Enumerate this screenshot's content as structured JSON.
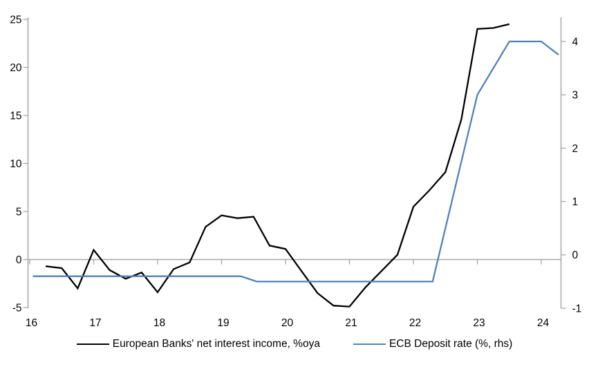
{
  "chart_data": {
    "type": "line",
    "title": "",
    "legend_position": "bottom",
    "grid": false,
    "x_axis": {
      "tick_labels": [
        "16",
        "17",
        "18",
        "19",
        "20",
        "21",
        "22",
        "23",
        "24"
      ],
      "tick_values": [
        16,
        17,
        18,
        19,
        20,
        21,
        22,
        23,
        24
      ],
      "range": [
        16,
        24.31
      ],
      "ticks_on_zero_line": true
    },
    "left_axis": {
      "tick_labels": [
        "25",
        "20",
        "15",
        "10",
        "5",
        "0",
        "-5"
      ],
      "tick_values": [
        25,
        20,
        15,
        10,
        5,
        0,
        -5
      ],
      "range": [
        -5,
        25
      ],
      "zero_line": true
    },
    "right_axis": {
      "tick_labels": [
        "4",
        "3",
        "2",
        "1",
        "0",
        "-1"
      ],
      "tick_values": [
        4,
        3,
        2,
        1,
        0,
        -1
      ],
      "range": [
        -1,
        4.33
      ]
    },
    "series": [
      {
        "name": "European Banks' net interest income, %oya",
        "axis": "left",
        "color": "#000000",
        "x": [
          16.25,
          16.5,
          16.75,
          17.0,
          17.25,
          17.5,
          17.75,
          18.0,
          18.25,
          18.5,
          18.75,
          19.0,
          19.25,
          19.5,
          19.75,
          20.0,
          20.25,
          20.5,
          20.75,
          21.0,
          21.25,
          21.5,
          21.75,
          22.0,
          22.25,
          22.5,
          22.75,
          23.0,
          23.25,
          23.5
        ],
        "values": [
          -0.7,
          -0.9,
          -3.0,
          1.0,
          -1.1,
          -2.0,
          -1.35,
          -3.4,
          -1.0,
          -0.3,
          3.4,
          4.6,
          4.3,
          4.45,
          1.45,
          1.1,
          -1.2,
          -3.5,
          -4.8,
          -4.9,
          -2.9,
          -1.2,
          0.5,
          5.5,
          7.2,
          9.1,
          14.6,
          24.0,
          24.1,
          24.5
        ]
      },
      {
        "name": "ECB Deposit rate (%, rhs)",
        "axis": "right",
        "color": "#4f81bd",
        "x": [
          16.05,
          19.3,
          19.55,
          22.3,
          23.0,
          23.5,
          24.0,
          24.27
        ],
        "values": [
          -0.4,
          -0.4,
          -0.5,
          -0.5,
          3.0,
          4.0,
          4.0,
          3.75
        ]
      }
    ]
  },
  "colors": {
    "background": "#ffffff",
    "axis": "#a6a6a6",
    "zero_line": "#a6a6a6",
    "label_text": "#000000",
    "nii_line": "#000000",
    "ecb_line": "#4f81bd"
  }
}
